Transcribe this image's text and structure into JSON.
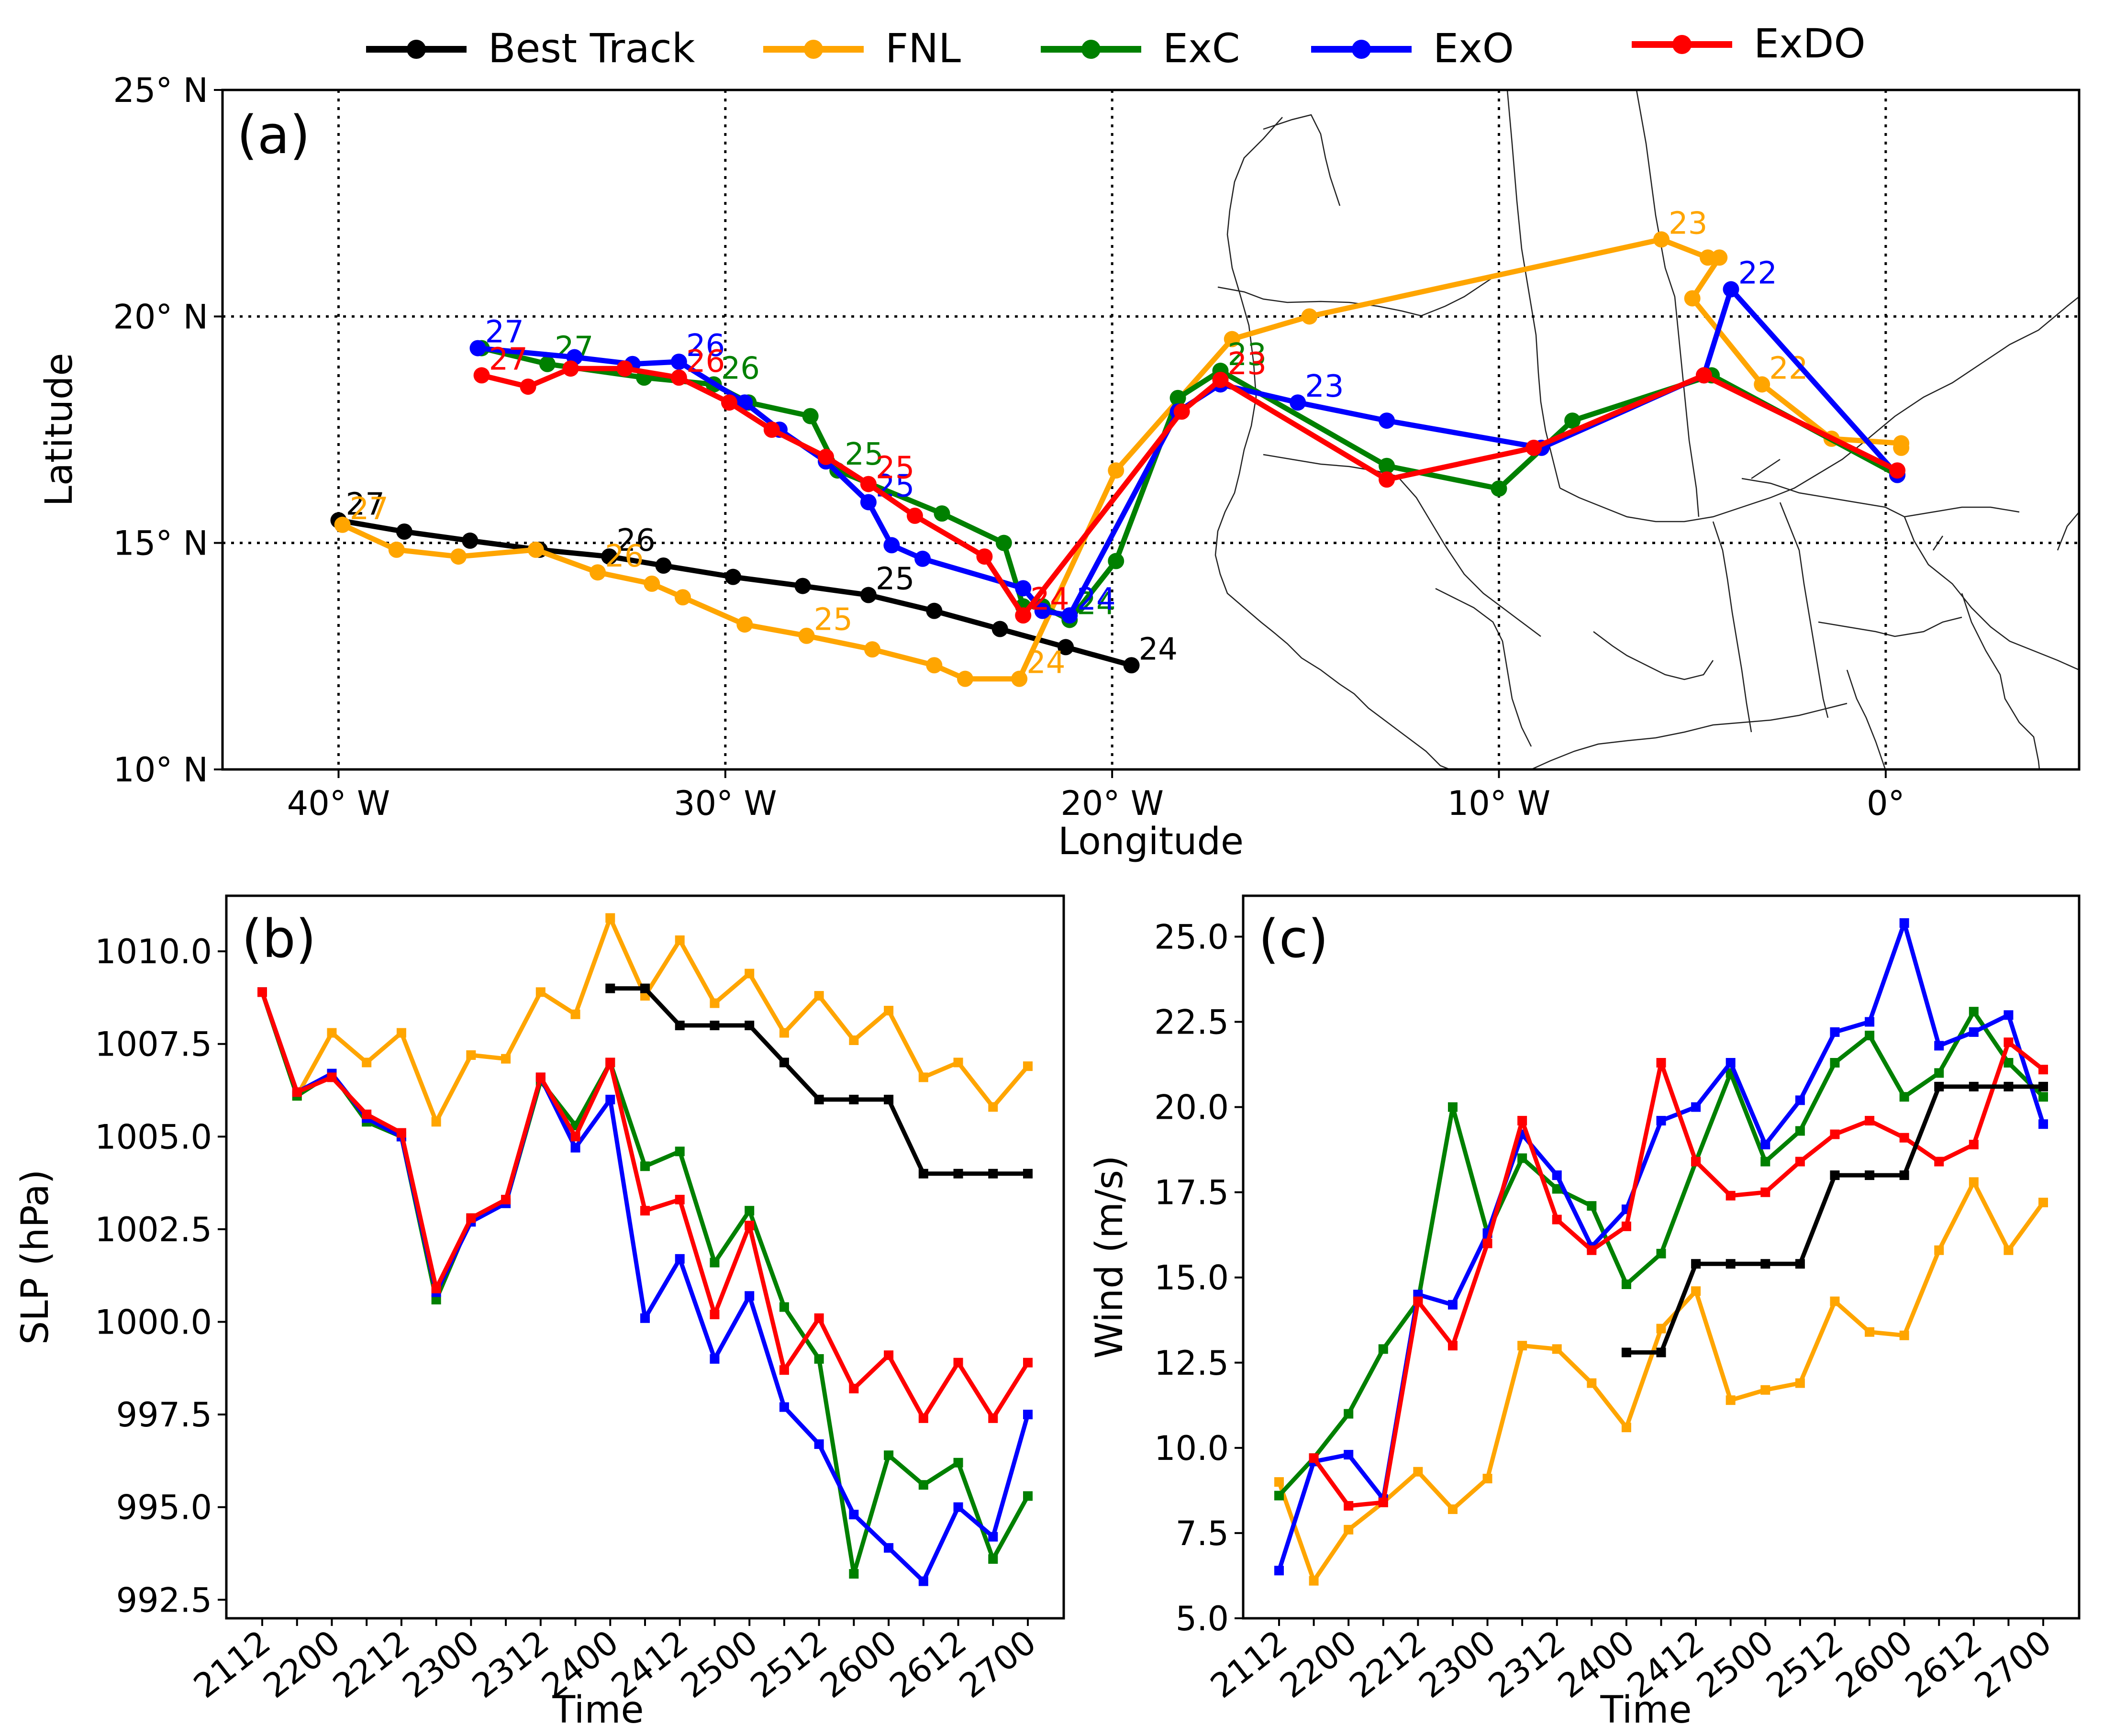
{
  "legend": [
    {
      "name": "Best Track",
      "color": "#000000"
    },
    {
      "name": "FNL",
      "color": "#FFA500"
    },
    {
      "name": "ExC",
      "color": "#008000"
    },
    {
      "name": "ExO",
      "color": "#0000FF"
    },
    {
      "name": "ExDO",
      "color": "#FF0000"
    }
  ],
  "chart_data": [
    {
      "panel": "(a)",
      "type": "line",
      "xlabel": "Longitude",
      "ylabel": "Latitude",
      "xlim": [
        -43,
        5
      ],
      "ylim": [
        10,
        25
      ],
      "x_ticks": [
        {
          "value": -40,
          "label": "40° W"
        },
        {
          "value": -30,
          "label": "30° W"
        },
        {
          "value": -20,
          "label": "20° W"
        },
        {
          "value": -10,
          "label": "10° W"
        },
        {
          "value": 0,
          "label": "0°"
        }
      ],
      "y_ticks": [
        {
          "value": 10,
          "label": "10° N"
        },
        {
          "value": 15,
          "label": "15° N"
        },
        {
          "value": 20,
          "label": "20° N"
        },
        {
          "value": 25,
          "label": "25° N"
        }
      ],
      "grid": "dotted",
      "series": [
        {
          "name": "Best Track",
          "color": "#000000",
          "points": [
            [
              -19.5,
              12.3
            ],
            [
              -21.2,
              12.7
            ],
            [
              -22.9,
              13.1
            ],
            [
              -24.6,
              13.5
            ],
            [
              -26.3,
              13.85
            ],
            [
              -28.0,
              14.05
            ],
            [
              -29.8,
              14.25
            ],
            [
              -31.6,
              14.5
            ],
            [
              -33.0,
              14.7
            ],
            [
              -34.8,
              14.85
            ],
            [
              -36.6,
              15.05
            ],
            [
              -38.3,
              15.25
            ],
            [
              -40.0,
              15.5
            ]
          ],
          "labels": [
            {
              "text": "24",
              "lon": -19.5,
              "lat": 12.3
            },
            {
              "text": "25",
              "lon": -26.3,
              "lat": 13.85
            },
            {
              "text": "26",
              "lon": -33.0,
              "lat": 14.7
            },
            {
              "text": "27",
              "lon": -40.0,
              "lat": 15.5
            }
          ]
        },
        {
          "name": "FNL",
          "color": "#FFA500",
          "points": [
            [
              0.4,
              17.1
            ],
            [
              0.4,
              17.2
            ],
            [
              -1.4,
              17.3
            ],
            [
              -3.2,
              18.5
            ],
            [
              -5.0,
              20.4
            ],
            [
              -4.3,
              21.3
            ],
            [
              -4.6,
              21.3
            ],
            [
              -5.8,
              21.7
            ],
            [
              -14.9,
              20.0
            ],
            [
              -16.9,
              19.5
            ],
            [
              -19.9,
              16.6
            ],
            [
              -22.4,
              12.0
            ],
            [
              -23.8,
              12.0
            ],
            [
              -24.6,
              12.3
            ],
            [
              -26.2,
              12.65
            ],
            [
              -27.9,
              12.95
            ],
            [
              -29.5,
              13.2
            ],
            [
              -31.1,
              13.8
            ],
            [
              -31.9,
              14.1
            ],
            [
              -33.3,
              14.35
            ],
            [
              -34.9,
              14.85
            ],
            [
              -36.9,
              14.7
            ],
            [
              -38.5,
              14.85
            ],
            [
              -39.9,
              15.4
            ]
          ],
          "labels": [
            {
              "text": "22",
              "lon": -3.2,
              "lat": 18.5
            },
            {
              "text": "23",
              "lon": -5.8,
              "lat": 21.7
            },
            {
              "text": "24",
              "lon": -22.4,
              "lat": 12.0
            },
            {
              "text": "25",
              "lon": -27.9,
              "lat": 12.95
            },
            {
              "text": "26",
              "lon": -33.3,
              "lat": 14.35
            },
            {
              "text": "27",
              "lon": -39.9,
              "lat": 15.4
            }
          ]
        },
        {
          "name": "ExC",
          "color": "#008000",
          "points": [
            [
              0.3,
              16.5
            ],
            [
              -4.5,
              18.7
            ],
            [
              -8.1,
              17.7
            ],
            [
              -10.0,
              16.2
            ],
            [
              -12.9,
              16.7
            ],
            [
              -17.2,
              18.8
            ],
            [
              -18.3,
              18.2
            ],
            [
              -19.9,
              14.6
            ],
            [
              -21.1,
              13.3
            ],
            [
              -21.8,
              13.6
            ],
            [
              -22.3,
              13.6
            ],
            [
              -22.8,
              15.0
            ],
            [
              -24.4,
              15.65
            ],
            [
              -27.1,
              16.6
            ],
            [
              -27.8,
              17.8
            ],
            [
              -29.4,
              18.1
            ],
            [
              -30.3,
              18.5
            ],
            [
              -32.1,
              18.65
            ],
            [
              -34.6,
              18.95
            ],
            [
              -36.3,
              19.3
            ]
          ],
          "labels": [
            {
              "text": "23",
              "lon": -17.2,
              "lat": 18.8
            },
            {
              "text": "24",
              "lon": -21.1,
              "lat": 13.3
            },
            {
              "text": "25",
              "lon": -27.1,
              "lat": 16.6
            },
            {
              "text": "26",
              "lon": -30.3,
              "lat": 18.5
            },
            {
              "text": "27",
              "lon": -34.6,
              "lat": 18.95
            }
          ]
        },
        {
          "name": "ExO",
          "color": "#0000FF",
          "points": [
            [
              0.3,
              16.5
            ],
            [
              -4.0,
              20.6
            ],
            [
              -4.7,
              18.7
            ],
            [
              -8.9,
              17.1
            ],
            [
              -12.9,
              17.7
            ],
            [
              -15.2,
              18.1
            ],
            [
              -17.2,
              18.5
            ],
            [
              -18.3,
              17.9
            ],
            [
              -21.1,
              13.4
            ],
            [
              -21.8,
              13.5
            ],
            [
              -22.3,
              14.0
            ],
            [
              -24.9,
              14.65
            ],
            [
              -25.7,
              14.95
            ],
            [
              -26.3,
              15.9
            ],
            [
              -27.4,
              16.8
            ],
            [
              -28.6,
              17.5
            ],
            [
              -29.5,
              18.1
            ],
            [
              -31.2,
              19.0
            ],
            [
              -32.4,
              18.95
            ],
            [
              -33.9,
              19.1
            ],
            [
              -36.4,
              19.3
            ]
          ],
          "labels": [
            {
              "text": "22",
              "lon": -4.0,
              "lat": 20.6
            },
            {
              "text": "23",
              "lon": -15.2,
              "lat": 18.1
            },
            {
              "text": "24",
              "lon": -21.1,
              "lat": 13.4
            },
            {
              "text": "25",
              "lon": -26.3,
              "lat": 15.9
            },
            {
              "text": "26",
              "lon": -31.2,
              "lat": 19.0
            },
            {
              "text": "27",
              "lon": -36.4,
              "lat": 19.3
            }
          ]
        },
        {
          "name": "ExDO",
          "color": "#FF0000",
          "points": [
            [
              0.3,
              16.6
            ],
            [
              -4.7,
              18.7
            ],
            [
              -9.1,
              17.1
            ],
            [
              -12.9,
              16.4
            ],
            [
              -17.2,
              18.6
            ],
            [
              -18.2,
              17.9
            ],
            [
              -22.3,
              13.4
            ],
            [
              -23.3,
              14.7
            ],
            [
              -25.1,
              15.6
            ],
            [
              -26.3,
              16.3
            ],
            [
              -27.4,
              16.9
            ],
            [
              -28.8,
              17.5
            ],
            [
              -29.9,
              18.1
            ],
            [
              -31.2,
              18.65
            ],
            [
              -32.6,
              18.85
            ],
            [
              -34.0,
              18.85
            ],
            [
              -35.1,
              18.45
            ],
            [
              -36.3,
              18.7
            ]
          ],
          "labels": [
            {
              "text": "23",
              "lon": -17.2,
              "lat": 18.6
            },
            {
              "text": "24",
              "lon": -22.3,
              "lat": 13.4
            },
            {
              "text": "25",
              "lon": -26.3,
              "lat": 16.3
            },
            {
              "text": "26",
              "lon": -31.2,
              "lat": 18.65
            },
            {
              "text": "27",
              "lon": -36.3,
              "lat": 18.7
            }
          ]
        }
      ]
    },
    {
      "panel": "(b)",
      "type": "line",
      "xlabel": "Time",
      "ylabel": "SLP (hPa)",
      "ylim": [
        992.0,
        1011.5
      ],
      "y_ticks": [
        992.5,
        995.0,
        997.5,
        1000.0,
        1002.5,
        1005.0,
        1007.5,
        1010.0
      ],
      "y_tick_labels": [
        "992.5",
        "995.0",
        "997.5",
        "1000.0",
        "1002.5",
        "1005.0",
        "1007.5",
        "1010.0"
      ],
      "x_ticks": [
        "2112",
        "2200",
        "2212",
        "2300",
        "2312",
        "2400",
        "2412",
        "2500",
        "2512",
        "2600",
        "2612",
        "2700"
      ],
      "series": [
        {
          "name": "FNL",
          "color": "#FFA500",
          "start": 0,
          "values": [
            1008.9,
            1006.1,
            1007.8,
            1007.0,
            1007.8,
            1005.4,
            1007.2,
            1007.1,
            1008.9,
            1008.3,
            1010.9,
            1008.8,
            1010.3,
            1008.6,
            1009.4,
            1007.8,
            1008.8,
            1007.6,
            1008.4,
            1006.6,
            1007.0,
            1005.8,
            1006.9
          ]
        },
        {
          "name": "ExC",
          "color": "#008000",
          "start": 0,
          "values": [
            1008.9,
            1006.1,
            1006.7,
            1005.4,
            1005.0,
            1000.6,
            1002.8,
            1003.2,
            1006.5,
            1005.3,
            1007.0,
            1004.2,
            1004.6,
            1001.6,
            1003.0,
            1000.4,
            999.0,
            993.2,
            996.4,
            995.6,
            996.2,
            993.6,
            995.3
          ]
        },
        {
          "name": "ExO",
          "color": "#0000FF",
          "start": 0,
          "values": [
            1008.9,
            1006.2,
            1006.7,
            1005.5,
            1005.0,
            1000.8,
            1002.7,
            1003.2,
            1006.6,
            1004.7,
            1006.0,
            1000.1,
            1001.7,
            999.0,
            1000.7,
            997.7,
            996.7,
            994.8,
            993.9,
            993.0,
            995.0,
            994.2,
            997.5
          ]
        },
        {
          "name": "ExDO",
          "color": "#FF0000",
          "start": 0,
          "values": [
            1008.9,
            1006.2,
            1006.6,
            1005.6,
            1005.1,
            1000.9,
            1002.8,
            1003.3,
            1006.6,
            1005.0,
            1007.0,
            1003.0,
            1003.3,
            1000.2,
            1002.6,
            998.7,
            1000.1,
            998.2,
            999.1,
            997.4,
            998.9,
            997.4,
            998.9
          ]
        },
        {
          "name": "Best Track",
          "color": "#000000",
          "start": 10,
          "values": [
            1009.0,
            1009.0,
            1008.0,
            1008.0,
            1008.0,
            1007.0,
            1006.0,
            1006.0,
            1006.0,
            1004.0,
            1004.0,
            1004.0,
            1004.0
          ]
        }
      ]
    },
    {
      "panel": "(c)",
      "type": "line",
      "xlabel": "Time",
      "ylabel": "Wind (m/s)",
      "ylim": [
        5.0,
        26.2
      ],
      "y_ticks": [
        5.0,
        7.5,
        10.0,
        12.5,
        15.0,
        17.5,
        20.0,
        22.5,
        25.0
      ],
      "y_tick_labels": [
        "5.0",
        "7.5",
        "10.0",
        "12.5",
        "15.0",
        "17.5",
        "20.0",
        "22.5",
        "25.0"
      ],
      "x_ticks": [
        "2112",
        "2200",
        "2212",
        "2300",
        "2312",
        "2400",
        "2412",
        "2500",
        "2512",
        "2600",
        "2612",
        "2700"
      ],
      "series": [
        {
          "name": "FNL",
          "color": "#FFA500",
          "start": 0,
          "values": [
            9.0,
            6.1,
            7.6,
            8.4,
            9.3,
            8.2,
            9.1,
            13.0,
            12.9,
            11.9,
            10.6,
            13.5,
            14.6,
            11.4,
            11.7,
            11.9,
            14.3,
            13.4,
            13.3,
            15.8,
            17.8,
            15.8,
            17.2
          ]
        },
        {
          "name": "ExC",
          "color": "#008000",
          "start": 0,
          "values": [
            8.6,
            9.7,
            11.0,
            12.9,
            14.3,
            20.0,
            16.3,
            18.5,
            17.6,
            17.1,
            14.8,
            15.7,
            18.4,
            21.0,
            18.4,
            19.3,
            21.3,
            22.1,
            20.3,
            21.0,
            22.8,
            21.3,
            20.3
          ]
        },
        {
          "name": "ExO",
          "color": "#0000FF",
          "start": 0,
          "values": [
            6.4,
            9.6,
            9.8,
            8.5,
            14.5,
            14.2,
            16.3,
            19.2,
            18.0,
            15.9,
            17.0,
            19.6,
            20.0,
            21.3,
            18.9,
            20.2,
            22.2,
            22.5,
            25.4,
            21.8,
            22.2,
            22.7,
            19.5
          ]
        },
        {
          "name": "ExDO",
          "color": "#FF0000",
          "start": 1,
          "values": [
            9.7,
            8.3,
            8.4,
            14.3,
            13.0,
            16.0,
            19.6,
            16.7,
            15.8,
            16.5,
            21.3,
            18.4,
            17.4,
            17.5,
            18.4,
            19.2,
            19.6,
            19.1,
            18.4,
            18.9,
            21.9,
            21.1
          ]
        },
        {
          "name": "Best Track",
          "color": "#000000",
          "start": 10,
          "values": [
            12.8,
            12.8,
            15.4,
            15.4,
            15.4,
            15.4,
            18.0,
            18.0,
            18.0,
            20.6,
            20.6,
            20.6,
            20.6
          ]
        }
      ]
    }
  ]
}
